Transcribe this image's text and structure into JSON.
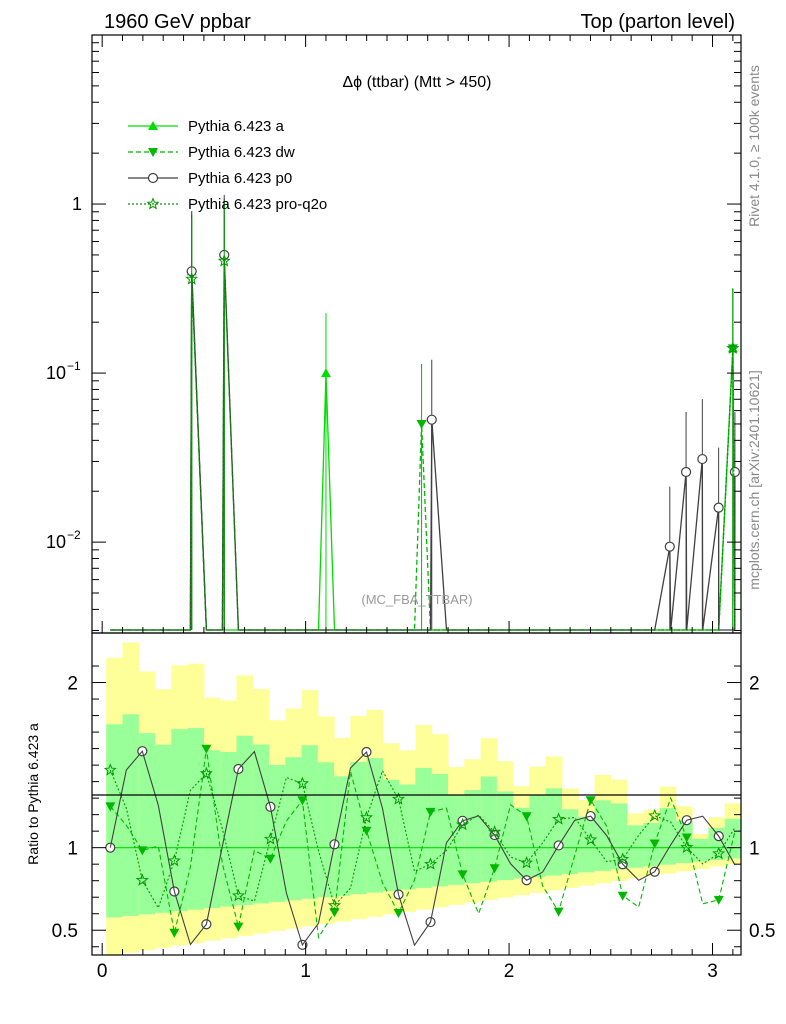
{
  "header": {
    "left_label": "1960 GeV ppbar",
    "right_label": "Top (parton level)"
  },
  "side_labels": {
    "rivet": "Rivet 4.1.0, ≥ 100k events",
    "mcplots": "mcplots.cern.ch [arXiv:2401.10621]"
  },
  "chart_data": {
    "type": "line",
    "title": "Δϕ (ttbar) (Mtt > 450)",
    "watermark": "(MC_FBA_TTBAR)",
    "main_panel": {
      "yscale": "log",
      "ylim": [
        0.0029,
        10
      ],
      "y_ticks": [
        {
          "value": 1,
          "label": "1"
        },
        {
          "value": 0.1,
          "base": "10",
          "exp": "−1"
        },
        {
          "value": 0.01,
          "base": "10",
          "exp": "−2"
        }
      ]
    },
    "ratio_panel": {
      "ylabel": "Ratio to Pythia 6.423 a",
      "ylim": [
        0.35,
        2.3
      ],
      "y_ticks": [
        0.5,
        1,
        2
      ],
      "y_tick_labels": [
        "0.5",
        "1",
        "2"
      ]
    },
    "xlim": [
      -0.05,
      3.14
    ],
    "x_ticks": [
      0,
      1,
      2,
      3
    ],
    "x_tick_labels": [
      "0",
      "1",
      "2",
      "3"
    ],
    "legend_position": "top-left",
    "series": [
      {
        "name": "Pythia 6.423 a",
        "color": "#00dd00",
        "marker": "triangle-up",
        "dash": "solid",
        "x": [
          0.44,
          1.1,
          3.1
        ],
        "y": [
          0.4,
          0.1,
          0.14
        ]
      },
      {
        "name": "Pythia 6.423 dw",
        "color": "#00b800",
        "marker": "triangle-down",
        "dash": "dashed",
        "x": [
          0.44,
          0.6,
          1.57,
          3.1
        ],
        "y": [
          0.38,
          0.48,
          0.05,
          0.14
        ]
      },
      {
        "name": "Pythia 6.423 p0",
        "color": "#404040",
        "marker": "circle-open",
        "dash": "solid",
        "x": [
          0.44,
          0.6,
          1.62,
          2.79,
          2.87,
          2.95,
          3.03,
          3.11
        ],
        "y": [
          0.4,
          0.5,
          0.053,
          0.0094,
          0.026,
          0.031,
          0.016,
          0.026
        ]
      },
      {
        "name": "Pythia 6.423 pro-q2o",
        "color": "#009900",
        "marker": "star-open",
        "dash": "dotted",
        "x": [
          0.44,
          0.6,
          3.1
        ],
        "y": [
          0.36,
          0.46,
          0.14
        ]
      }
    ]
  }
}
